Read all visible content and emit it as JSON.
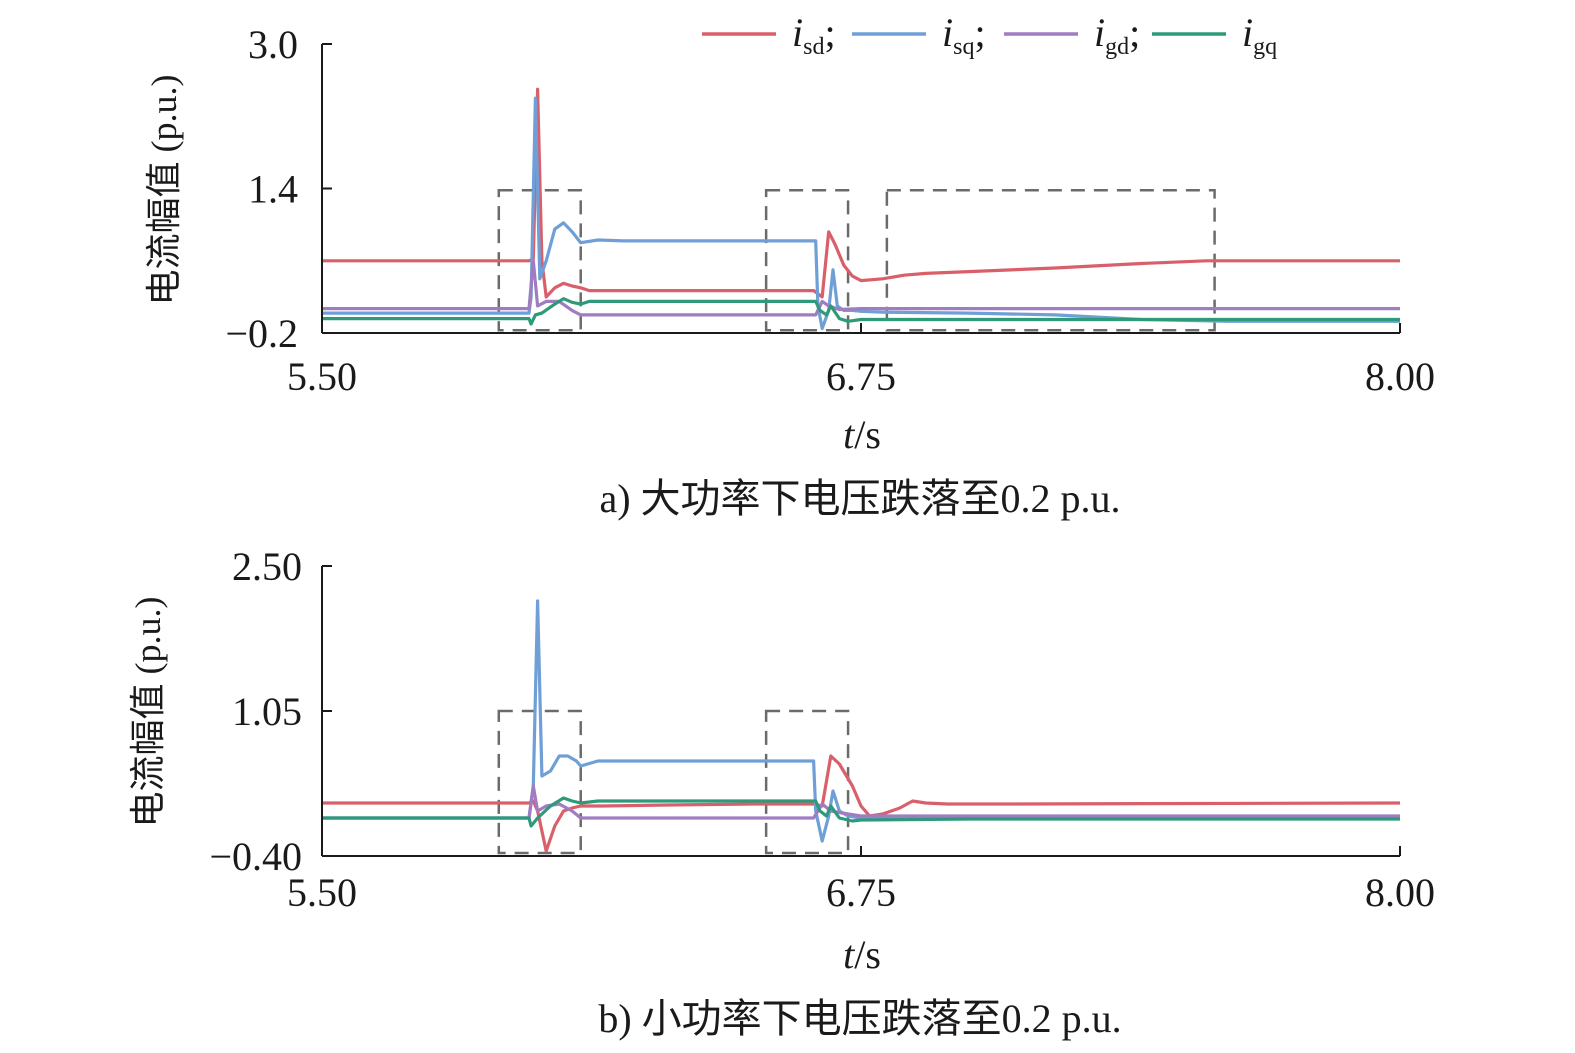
{
  "colors": {
    "isd": "#d9606a",
    "isq": "#6f9fd6",
    "igd": "#a07cc0",
    "igq": "#2f9a7a",
    "box": "#6b6b6b",
    "axis": "#1a1a1a"
  },
  "legend": [
    {
      "key": "isd",
      "base": "i",
      "sub": "sd",
      "sep": ";"
    },
    {
      "key": "isq",
      "base": "i",
      "sub": "sq",
      "sep": ";"
    },
    {
      "key": "igd",
      "base": "i",
      "sub": "gd",
      "sep": ";"
    },
    {
      "key": "igq",
      "base": "i",
      "sub": "gq",
      "sep": ""
    }
  ],
  "chart_data": [
    {
      "type": "line",
      "caption": "a) 大功率下电压跌落至0.2 p.u.",
      "ylabel": "电流幅值 (p.u.)",
      "xlabel_italic": "t",
      "xlabel_unit": "/s",
      "xlim": [
        5.5,
        8.0
      ],
      "ylim": [
        -0.2,
        3.0
      ],
      "yticks": [
        "3.0",
        "1.4",
        "−0.2"
      ],
      "yticks_values": [
        3.0,
        1.4,
        -0.2
      ],
      "xticks": [
        "5.50",
        "6.75",
        "8.00"
      ],
      "xticks_values": [
        5.5,
        6.75,
        8.0
      ],
      "boxes": [
        {
          "t0": 5.91,
          "t1": 6.1,
          "y0": -0.17,
          "y1": 1.38
        },
        {
          "t0": 6.53,
          "t1": 6.72,
          "y0": -0.17,
          "y1": 1.38
        },
        {
          "t0": 6.81,
          "t1": 7.57,
          "y0": -0.17,
          "y1": 1.38
        }
      ],
      "series": [
        {
          "key": "isd",
          "points": [
            [
              5.5,
              0.6
            ],
            [
              5.98,
              0.6
            ],
            [
              5.99,
              0.62
            ],
            [
              6.0,
              2.5
            ],
            [
              6.01,
              0.6
            ],
            [
              6.02,
              0.2
            ],
            [
              6.04,
              0.3
            ],
            [
              6.06,
              0.35
            ],
            [
              6.08,
              0.32
            ],
            [
              6.1,
              0.3
            ],
            [
              6.12,
              0.27
            ],
            [
              6.2,
              0.27
            ],
            [
              6.3,
              0.27
            ],
            [
              6.4,
              0.27
            ],
            [
              6.5,
              0.27
            ],
            [
              6.6,
              0.27
            ],
            [
              6.64,
              0.27
            ],
            [
              6.66,
              0.2
            ],
            [
              6.675,
              0.92
            ],
            [
              6.69,
              0.78
            ],
            [
              6.71,
              0.55
            ],
            [
              6.73,
              0.43
            ],
            [
              6.75,
              0.38
            ],
            [
              6.8,
              0.4
            ],
            [
              6.85,
              0.44
            ],
            [
              6.9,
              0.46
            ],
            [
              7.0,
              0.48
            ],
            [
              7.2,
              0.52
            ],
            [
              7.4,
              0.57
            ],
            [
              7.55,
              0.6
            ],
            [
              7.65,
              0.6
            ],
            [
              8.0,
              0.6
            ]
          ]
        },
        {
          "key": "isq",
          "points": [
            [
              5.5,
              0.02
            ],
            [
              5.98,
              0.02
            ],
            [
              5.985,
              0.2
            ],
            [
              5.995,
              2.4
            ],
            [
              6.005,
              0.4
            ],
            [
              6.02,
              0.6
            ],
            [
              6.04,
              0.95
            ],
            [
              6.06,
              1.02
            ],
            [
              6.08,
              0.92
            ],
            [
              6.1,
              0.8
            ],
            [
              6.14,
              0.83
            ],
            [
              6.2,
              0.82
            ],
            [
              6.3,
              0.82
            ],
            [
              6.4,
              0.82
            ],
            [
              6.5,
              0.82
            ],
            [
              6.6,
              0.82
            ],
            [
              6.645,
              0.82
            ],
            [
              6.65,
              0.1
            ],
            [
              6.66,
              -0.15
            ],
            [
              6.675,
              0.05
            ],
            [
              6.685,
              0.5
            ],
            [
              6.695,
              0.1
            ],
            [
              6.71,
              0.05
            ],
            [
              6.73,
              0.05
            ],
            [
              6.75,
              0.04
            ],
            [
              6.8,
              0.03
            ],
            [
              7.0,
              0.02
            ],
            [
              7.2,
              0.0
            ],
            [
              7.4,
              -0.05
            ],
            [
              7.6,
              -0.07
            ],
            [
              8.0,
              -0.07
            ]
          ]
        },
        {
          "key": "igd",
          "points": [
            [
              5.5,
              0.07
            ],
            [
              5.98,
              0.07
            ],
            [
              5.99,
              0.6
            ],
            [
              6.0,
              0.1
            ],
            [
              6.02,
              0.15
            ],
            [
              6.05,
              0.15
            ],
            [
              6.08,
              0.05
            ],
            [
              6.1,
              0.0
            ],
            [
              6.2,
              0.0
            ],
            [
              6.4,
              0.0
            ],
            [
              6.6,
              0.0
            ],
            [
              6.645,
              0.0
            ],
            [
              6.66,
              0.15
            ],
            [
              6.675,
              0.1
            ],
            [
              6.7,
              0.06
            ],
            [
              6.75,
              0.07
            ],
            [
              6.8,
              0.07
            ],
            [
              7.0,
              0.07
            ],
            [
              7.5,
              0.07
            ],
            [
              8.0,
              0.07
            ]
          ]
        },
        {
          "key": "igq",
          "points": [
            [
              5.5,
              -0.04
            ],
            [
              5.98,
              -0.04
            ],
            [
              5.985,
              -0.1
            ],
            [
              5.995,
              0.0
            ],
            [
              6.01,
              0.02
            ],
            [
              6.04,
              0.12
            ],
            [
              6.06,
              0.18
            ],
            [
              6.08,
              0.14
            ],
            [
              6.1,
              0.12
            ],
            [
              6.12,
              0.15
            ],
            [
              6.2,
              0.15
            ],
            [
              6.3,
              0.15
            ],
            [
              6.4,
              0.15
            ],
            [
              6.5,
              0.15
            ],
            [
              6.6,
              0.15
            ],
            [
              6.645,
              0.15
            ],
            [
              6.655,
              0.05
            ],
            [
              6.67,
              0.0
            ],
            [
              6.68,
              0.1
            ],
            [
              6.7,
              -0.04
            ],
            [
              6.72,
              -0.07
            ],
            [
              6.75,
              -0.05
            ],
            [
              6.8,
              -0.05
            ],
            [
              7.0,
              -0.05
            ],
            [
              7.5,
              -0.05
            ],
            [
              8.0,
              -0.05
            ]
          ]
        }
      ]
    },
    {
      "type": "line",
      "caption": "b) 小功率下电压跌落至0.2 p.u.",
      "ylabel": "电流幅值 (p.u.)",
      "xlabel_italic": "t",
      "xlabel_unit": "/s",
      "xlim": [
        5.5,
        8.0
      ],
      "ylim": [
        -0.4,
        2.5
      ],
      "yticks": [
        "2.50",
        "1.05",
        "−0.40"
      ],
      "yticks_values": [
        2.5,
        1.05,
        -0.4
      ],
      "xticks": [
        "5.50",
        "6.75",
        "8.00"
      ],
      "xticks_values": [
        5.5,
        6.75,
        8.0
      ],
      "boxes": [
        {
          "t0": 5.91,
          "t1": 6.1,
          "y0": -0.37,
          "y1": 1.05
        },
        {
          "t0": 6.53,
          "t1": 6.72,
          "y0": -0.37,
          "y1": 1.05
        }
      ],
      "series": [
        {
          "key": "isd",
          "points": [
            [
              5.5,
              0.13
            ],
            [
              5.98,
              0.13
            ],
            [
              5.99,
              0.15
            ],
            [
              6.0,
              0.05
            ],
            [
              6.02,
              -0.35
            ],
            [
              6.04,
              -0.1
            ],
            [
              6.06,
              0.05
            ],
            [
              6.08,
              0.08
            ],
            [
              6.1,
              0.1
            ],
            [
              6.15,
              0.1
            ],
            [
              6.3,
              0.11
            ],
            [
              6.5,
              0.12
            ],
            [
              6.64,
              0.12
            ],
            [
              6.66,
              0.1
            ],
            [
              6.68,
              0.6
            ],
            [
              6.7,
              0.52
            ],
            [
              6.73,
              0.3
            ],
            [
              6.75,
              0.1
            ],
            [
              6.77,
              0.0
            ],
            [
              6.8,
              0.02
            ],
            [
              6.84,
              0.08
            ],
            [
              6.87,
              0.15
            ],
            [
              6.9,
              0.13
            ],
            [
              6.95,
              0.12
            ],
            [
              7.1,
              0.12
            ],
            [
              8.0,
              0.13
            ]
          ]
        },
        {
          "key": "isq",
          "points": [
            [
              5.5,
              -0.02
            ],
            [
              5.98,
              -0.02
            ],
            [
              5.99,
              0.3
            ],
            [
              6.0,
              2.15
            ],
            [
              6.01,
              0.4
            ],
            [
              6.03,
              0.45
            ],
            [
              6.05,
              0.6
            ],
            [
              6.07,
              0.6
            ],
            [
              6.09,
              0.55
            ],
            [
              6.1,
              0.5
            ],
            [
              6.14,
              0.55
            ],
            [
              6.2,
              0.55
            ],
            [
              6.35,
              0.55
            ],
            [
              6.5,
              0.55
            ],
            [
              6.64,
              0.55
            ],
            [
              6.645,
              0.05
            ],
            [
              6.66,
              -0.25
            ],
            [
              6.675,
              0.0
            ],
            [
              6.685,
              0.25
            ],
            [
              6.7,
              0.05
            ],
            [
              6.72,
              0.0
            ],
            [
              6.75,
              -0.02
            ],
            [
              7.0,
              -0.02
            ],
            [
              8.0,
              -0.02
            ]
          ]
        },
        {
          "key": "igd",
          "points": [
            [
              5.5,
              -0.02
            ],
            [
              5.98,
              -0.02
            ],
            [
              5.99,
              0.3
            ],
            [
              6.0,
              0.05
            ],
            [
              6.02,
              0.1
            ],
            [
              6.05,
              0.12
            ],
            [
              6.08,
              0.05
            ],
            [
              6.1,
              -0.02
            ],
            [
              6.2,
              -0.02
            ],
            [
              6.4,
              -0.02
            ],
            [
              6.64,
              -0.02
            ],
            [
              6.66,
              0.12
            ],
            [
              6.68,
              0.05
            ],
            [
              6.72,
              0.02
            ],
            [
              6.75,
              0.0
            ],
            [
              6.8,
              0.0
            ],
            [
              7.0,
              0.0
            ],
            [
              8.0,
              0.0
            ]
          ]
        },
        {
          "key": "igq",
          "points": [
            [
              5.5,
              -0.02
            ],
            [
              5.98,
              -0.02
            ],
            [
              5.985,
              -0.1
            ],
            [
              6.0,
              -0.02
            ],
            [
              6.03,
              0.1
            ],
            [
              6.06,
              0.18
            ],
            [
              6.08,
              0.15
            ],
            [
              6.1,
              0.13
            ],
            [
              6.14,
              0.15
            ],
            [
              6.3,
              0.15
            ],
            [
              6.5,
              0.15
            ],
            [
              6.645,
              0.15
            ],
            [
              6.655,
              0.05
            ],
            [
              6.67,
              0.0
            ],
            [
              6.68,
              0.1
            ],
            [
              6.7,
              -0.02
            ],
            [
              6.73,
              -0.05
            ],
            [
              6.75,
              -0.04
            ],
            [
              7.0,
              -0.03
            ],
            [
              8.0,
              -0.03
            ]
          ]
        }
      ]
    }
  ]
}
